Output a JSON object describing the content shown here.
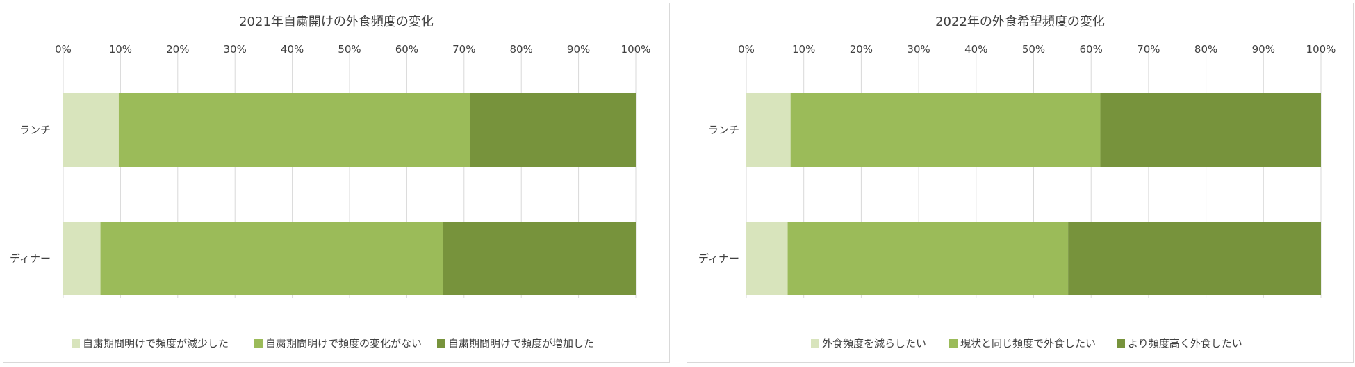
{
  "chart_data": [
    {
      "type": "bar",
      "orientation": "horizontal",
      "stacked": "percent",
      "title": "2021年自粛開けの外食頻度の変化",
      "xlim": [
        0,
        100
      ],
      "x_ticks": [
        "0%",
        "10%",
        "20%",
        "30%",
        "40%",
        "50%",
        "60%",
        "70%",
        "80%",
        "90%",
        "100%"
      ],
      "categories": [
        "ランチ",
        "ディナー"
      ],
      "series": [
        {
          "name": "自粛期間明けで頻度が減少した",
          "color": "#d8e4bc",
          "values": [
            9.7,
            6.5
          ]
        },
        {
          "name": "自粛期間明けで頻度の変化がない",
          "color": "#9bbb59",
          "values": [
            61.3,
            59.8
          ]
        },
        {
          "name": "自粛期間明けで頻度が増加した",
          "color": "#77933c",
          "values": [
            29.0,
            33.7
          ]
        }
      ],
      "grid": true,
      "legend": "bottom"
    },
    {
      "type": "bar",
      "orientation": "horizontal",
      "stacked": "percent",
      "title": "2022年の外食希望頻度の変化",
      "xlim": [
        0,
        100
      ],
      "x_ticks": [
        "0%",
        "10%",
        "20%",
        "30%",
        "40%",
        "50%",
        "60%",
        "70%",
        "80%",
        "90%",
        "100%"
      ],
      "categories": [
        "ランチ",
        "ディナー"
      ],
      "series": [
        {
          "name": "外食頻度を減らしたい",
          "color": "#d8e4bc",
          "values": [
            7.7,
            7.2
          ]
        },
        {
          "name": "現状と同じ頻度で外食したい",
          "color": "#9bbb59",
          "values": [
            53.9,
            48.8
          ]
        },
        {
          "name": "より頻度高く外食したい",
          "color": "#77933c",
          "values": [
            38.4,
            44.0
          ]
        }
      ],
      "grid": true,
      "legend": "bottom"
    }
  ]
}
